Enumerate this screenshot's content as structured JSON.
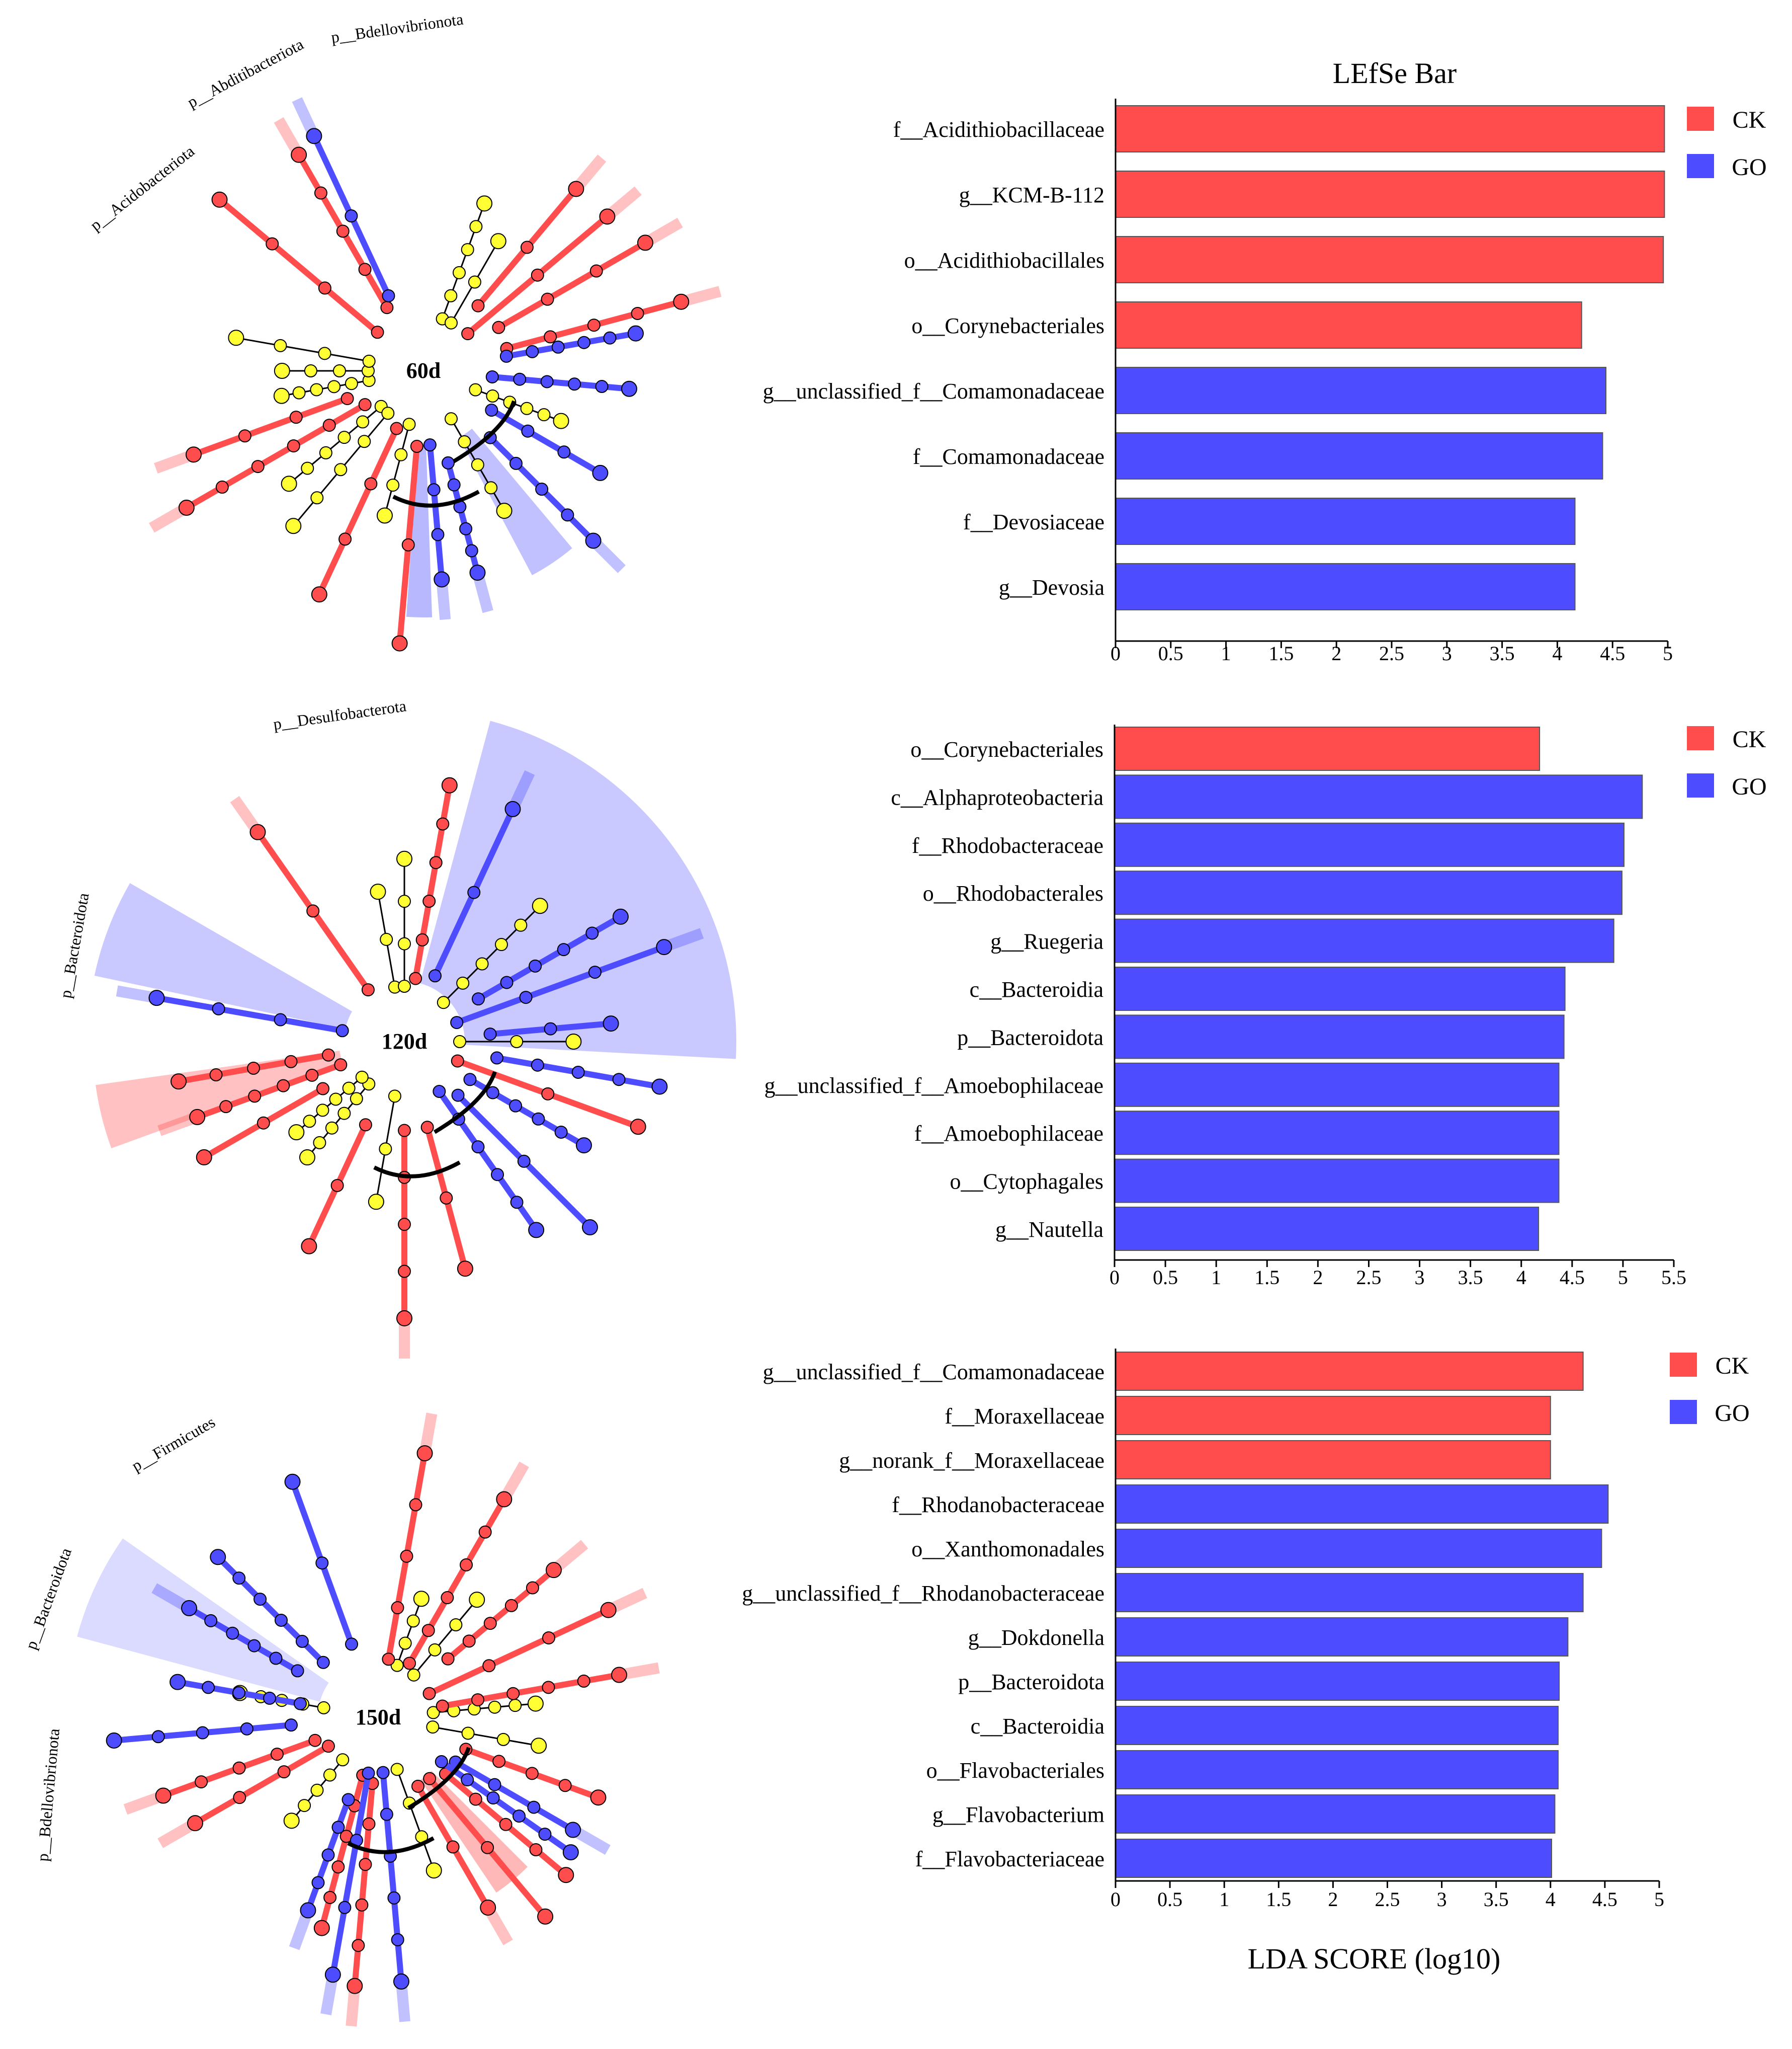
{
  "bar_title": "LEfSe Bar",
  "xlabel": "LDA SCORE (log10)",
  "colors": {
    "CK": "#ff4d4d",
    "GO": "#4d4dff",
    "node": "#ffff33",
    "clade_line": "#000000"
  },
  "legend": [
    "CK",
    "GO"
  ],
  "cladograms": [
    {
      "label": "60d",
      "phylum_labels": [
        "p__Acidobacteriota",
        "p__Abditibacteriota",
        "p__Bdellovibrionota"
      ]
    },
    {
      "label": "120d",
      "phylum_labels": [
        "p__Desulfobacterota",
        "p__Bacteroidota"
      ]
    },
    {
      "label": "150d",
      "phylum_labels": [
        "p__Firmicutes",
        "p__Bacteroidota",
        "p__Bdellovibrionota"
      ]
    }
  ],
  "chart_data": [
    {
      "type": "bar",
      "orientation": "horizontal",
      "title": "LEfSe Bar",
      "xlabel": "",
      "xlim": [
        0,
        5
      ],
      "xticks": [
        "0",
        "0.5",
        "1",
        "1.5",
        "2",
        "2.5",
        "3",
        "3.5",
        "4",
        "4.5",
        "5"
      ],
      "legend": [
        "CK",
        "GO"
      ],
      "legend_position": "right",
      "categories": [
        "f__Acidithiobacillaceae",
        "g__KCM-B-112",
        "o__Acidithiobacillales",
        "o__Corynebacteriales",
        "g__unclassified_f__Comamonadaceae",
        "f__Comamonadaceae",
        "f__Devosiaceae",
        "g__Devosia"
      ],
      "values": [
        4.97,
        4.97,
        4.96,
        4.22,
        4.44,
        4.41,
        4.16,
        4.16
      ],
      "groups": [
        "CK",
        "CK",
        "CK",
        "CK",
        "GO",
        "GO",
        "GO",
        "GO"
      ]
    },
    {
      "type": "bar",
      "orientation": "horizontal",
      "title": "",
      "xlabel": "",
      "xlim": [
        0,
        5.5
      ],
      "xticks": [
        "0",
        "0.5",
        "1",
        "1.5",
        "2",
        "2.5",
        "3",
        "3.5",
        "4",
        "4.5",
        "5",
        "5.5"
      ],
      "legend": [
        "CK",
        "GO"
      ],
      "legend_position": "right",
      "categories": [
        "o__Corynebacteriales",
        "c__Alphaproteobacteria",
        "f__Rhodobacteraceae",
        "o__Rhodobacterales",
        "g__Ruegeria",
        "c__Bacteroidia",
        "p__Bacteroidota",
        "g__unclassified_f__Amoebophilaceae",
        "f__Amoebophilaceae",
        "o__Cytophagales",
        "g__Nautella"
      ],
      "values": [
        4.18,
        5.19,
        5.01,
        4.99,
        4.91,
        4.43,
        4.42,
        4.37,
        4.37,
        4.37,
        4.17
      ],
      "groups": [
        "CK",
        "GO",
        "GO",
        "GO",
        "GO",
        "GO",
        "GO",
        "GO",
        "GO",
        "GO",
        "GO"
      ]
    },
    {
      "type": "bar",
      "orientation": "horizontal",
      "title": "",
      "xlabel": "LDA SCORE (log10)",
      "xlim": [
        0,
        5
      ],
      "xticks": [
        "0",
        "0.5",
        "1",
        "1.5",
        "2",
        "2.5",
        "3",
        "3.5",
        "4",
        "4.5",
        "5"
      ],
      "legend": [
        "CK",
        "GO"
      ],
      "legend_position": "right",
      "categories": [
        "g__unclassified_f__Comamonadaceae",
        "f__Moraxellaceae",
        "g__norank_f__Moraxellaceae",
        "f__Rhodanobacteraceae",
        "o__Xanthomonadales",
        "g__unclassified_f__Rhodanobacteraceae",
        "g__Dokdonella",
        "p__Bacteroidota",
        "c__Bacteroidia",
        "o__Flavobacteriales",
        "g__Flavobacterium",
        "f__Flavobacteriaceae"
      ],
      "values": [
        4.3,
        4.0,
        4.0,
        4.53,
        4.47,
        4.3,
        4.16,
        4.08,
        4.07,
        4.07,
        4.04,
        4.01
      ],
      "groups": [
        "CK",
        "CK",
        "CK",
        "GO",
        "GO",
        "GO",
        "GO",
        "GO",
        "GO",
        "GO",
        "GO",
        "GO"
      ]
    }
  ]
}
